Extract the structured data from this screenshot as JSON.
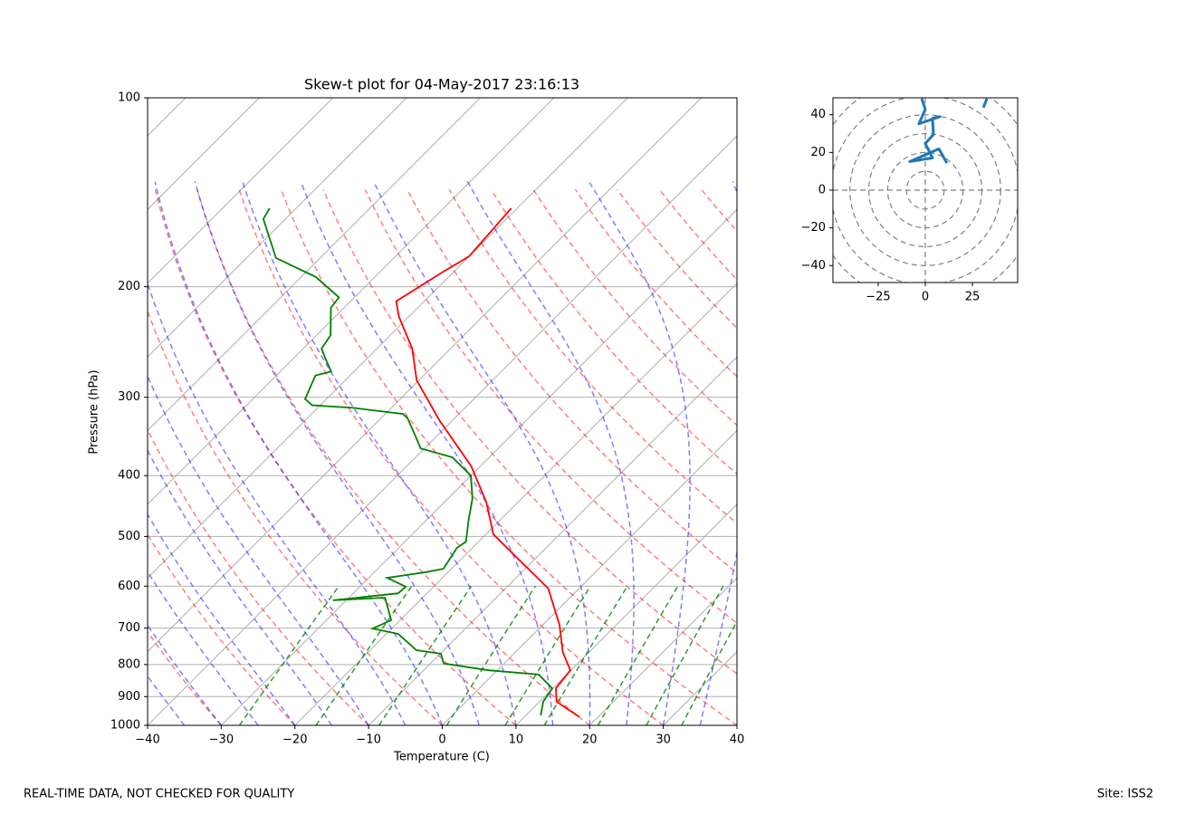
{
  "chart_data": [
    {
      "type": "skewt",
      "title": "Skew-t plot for 04-May-2017 23:16:13",
      "x_label": "Temperature (C)",
      "y_label": "Pressure (hPa)",
      "yscale": "log",
      "xlim": [
        -40,
        40
      ],
      "ylim": [
        1000,
        100
      ],
      "xticks": [
        {
          "value": -40,
          "label": "−40"
        },
        {
          "value": -30,
          "label": "−30"
        },
        {
          "value": -20,
          "label": "−20"
        },
        {
          "value": -10,
          "label": "−10"
        },
        0,
        10,
        20,
        30,
        40
      ],
      "yticks": [
        100,
        200,
        300,
        400,
        500,
        600,
        700,
        800,
        900,
        1000
      ],
      "grid": true,
      "series": [
        {
          "color": "#ff0000",
          "x": [
            17.5,
            12.3,
            10.4,
            9.9,
            6.4,
            2.3,
            -4.2,
            -11.6,
            -19,
            -24.3,
            -31.3,
            -41.7,
            -50.3,
            -55.2,
            -61.4,
            -63.8,
            -63.5,
            -61.4,
            -60,
            -60.8
          ],
          "values": [
            970,
            917,
            873,
            817,
            764,
            692,
            605,
            548,
            496,
            441,
            386,
            327,
            282,
            251,
            223,
            211,
            208,
            189,
            179,
            150
          ]
        },
        {
          "color": "#008000",
          "x": [
            12.0,
            10.5,
            9.9,
            6.2,
            -1.2,
            -8.2,
            -9.9,
            -13.7,
            -18.4,
            -22.6,
            -21.2,
            -25.1,
            -31.8,
            -23.9,
            -23.8,
            -27.5,
            -23,
            -21.1,
            -22.1,
            -21.7,
            -24.2,
            -26.7,
            -30,
            -35,
            -40.5,
            -43.2,
            -46.4,
            -47.6,
            -55.2,
            -61.1,
            -62.9,
            -64.7,
            -63.1,
            -65.7,
            -67.5,
            -68.1,
            -71.8,
            -72.1,
            -78,
            -86,
            -93,
            -93.6
          ],
          "values": [
            964,
            917,
            873,
            830,
            817,
            797,
            769,
            759,
            715,
            701,
            680,
            626,
            632,
            616,
            601,
            582,
            570,
            563,
            521,
            510,
            472,
            435,
            400,
            374,
            362,
            344,
            324,
            319,
            312,
            309,
            302,
            277,
            273,
            260,
            251,
            239,
            216,
            208,
            193,
            180,
            156,
            150
          ]
        }
      ],
      "footer_left": "REAL-TIME DATA, NOT CHECKED FOR QUALITY",
      "footer_right": "Site: ISS2"
    },
    {
      "type": "line",
      "color": "#1f77b4",
      "x": [
        11.5,
        7.2,
        -8.2,
        3.8,
        0,
        4.3,
        3.8,
        7.7,
        -3.4,
        0,
        -1.9,
        null,
        30.8,
        32.7
      ],
      "values": [
        14.3,
        21.9,
        15.2,
        17.1,
        24.8,
        29.5,
        38.1,
        39,
        35.2,
        42.9,
        48.6,
        null,
        43.8,
        48.6
      ],
      "xlim": [
        -49,
        49
      ],
      "ylim": [
        -49,
        49
      ],
      "xticks": [
        {
          "value": -25,
          "label": "−25"
        },
        0,
        25
      ],
      "yticks": [
        {
          "value": -40,
          "label": "−40"
        },
        {
          "value": -20,
          "label": "−20"
        },
        0,
        20,
        40
      ]
    }
  ]
}
